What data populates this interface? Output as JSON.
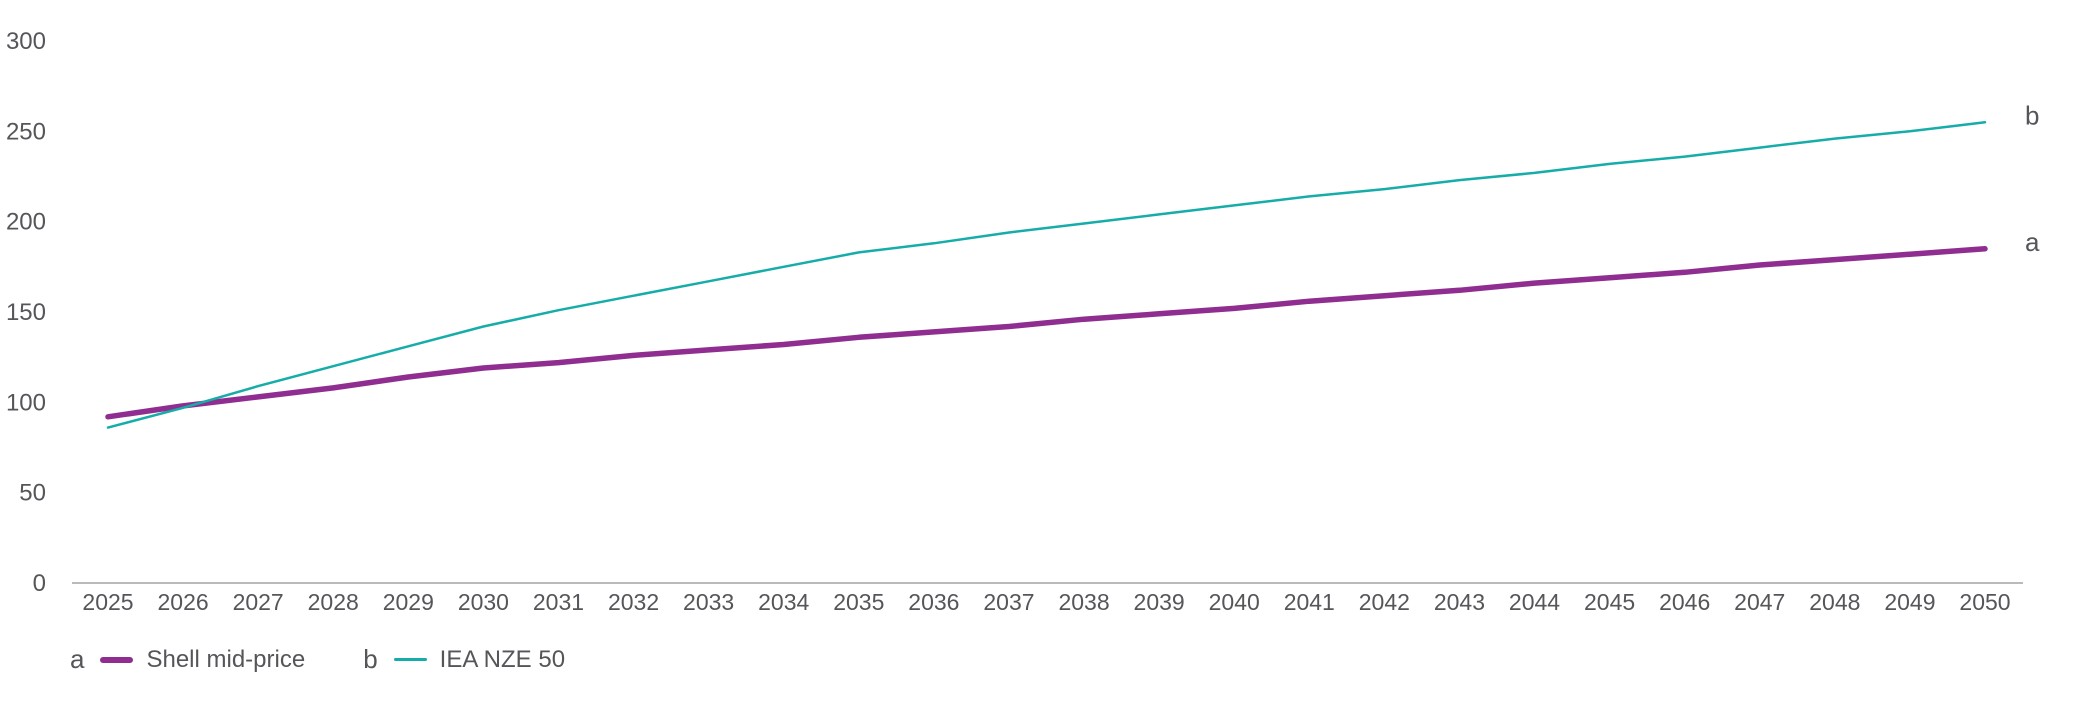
{
  "chart_data": {
    "type": "line",
    "title": "",
    "xlabel": "",
    "ylabel": "",
    "x": [
      2025,
      2026,
      2027,
      2028,
      2029,
      2030,
      2031,
      2032,
      2033,
      2034,
      2035,
      2036,
      2037,
      2038,
      2039,
      2040,
      2041,
      2042,
      2043,
      2044,
      2045,
      2046,
      2047,
      2048,
      2049,
      2050
    ],
    "series": [
      {
        "name": "Shell mid-price",
        "letter": "a",
        "color": "#8f2e90",
        "stroke_width": 5.5,
        "values": [
          92,
          98,
          103,
          108,
          114,
          119,
          122,
          126,
          129,
          132,
          136,
          139,
          142,
          146,
          149,
          152,
          156,
          159,
          162,
          166,
          169,
          172,
          176,
          179,
          182,
          185
        ]
      },
      {
        "name": "IEA NZE 50",
        "letter": "b",
        "color": "#16ada9",
        "stroke_width": 2.5,
        "values": [
          86,
          97,
          109,
          120,
          131,
          142,
          151,
          159,
          167,
          175,
          183,
          188,
          194,
          199,
          204,
          209,
          214,
          218,
          223,
          227,
          232,
          236,
          241,
          246,
          250,
          255
        ]
      }
    ],
    "ylim": [
      0,
      300
    ],
    "yticks": [
      0,
      50,
      100,
      150,
      200,
      250,
      300
    ],
    "grid": false,
    "legend_position": "bottom-left",
    "end_labels_shown": true,
    "axis_line_color": "#a2a4a6",
    "tick_text_color": "#54565a"
  }
}
